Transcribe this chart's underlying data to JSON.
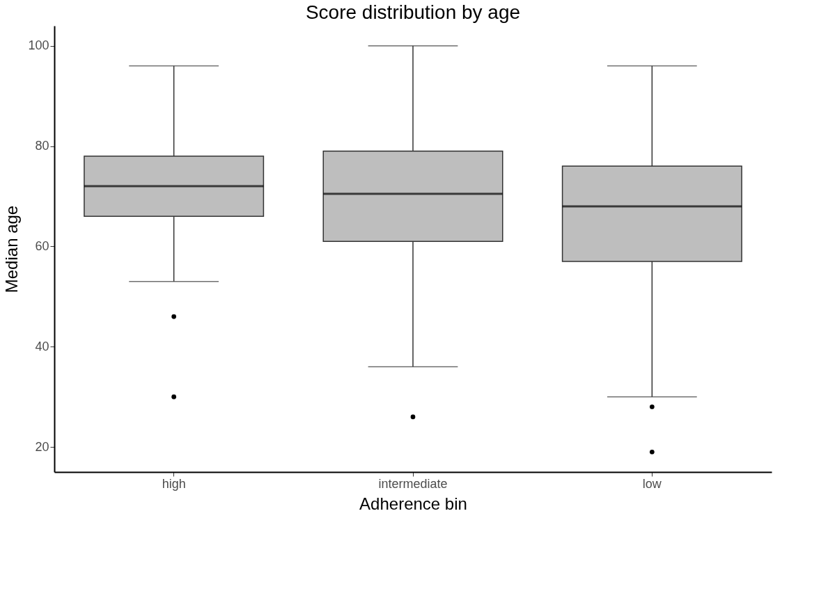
{
  "chart_data": {
    "type": "box",
    "title": "Score distribution by age",
    "xlabel": "Adherence bin",
    "ylabel": "Median age",
    "categories": [
      "high",
      "intermediate",
      "low"
    ],
    "series": [
      {
        "color": "#bebebe",
        "boxes": [
          {
            "low": 53,
            "q1": 66,
            "median": 72,
            "q3": 78,
            "high": 96,
            "outliers": [
              46,
              30
            ]
          },
          {
            "low": 36,
            "q1": 61,
            "median": 70.5,
            "q3": 79,
            "high": 100,
            "outliers": [
              26
            ]
          },
          {
            "low": 30,
            "q1": 57,
            "median": 68,
            "q3": 76,
            "high": 96,
            "outliers": [
              28,
              19
            ]
          }
        ]
      }
    ],
    "ylim": [
      15,
      104
    ],
    "yticks": [
      20,
      40,
      60,
      80,
      100
    ],
    "grid": false
  }
}
